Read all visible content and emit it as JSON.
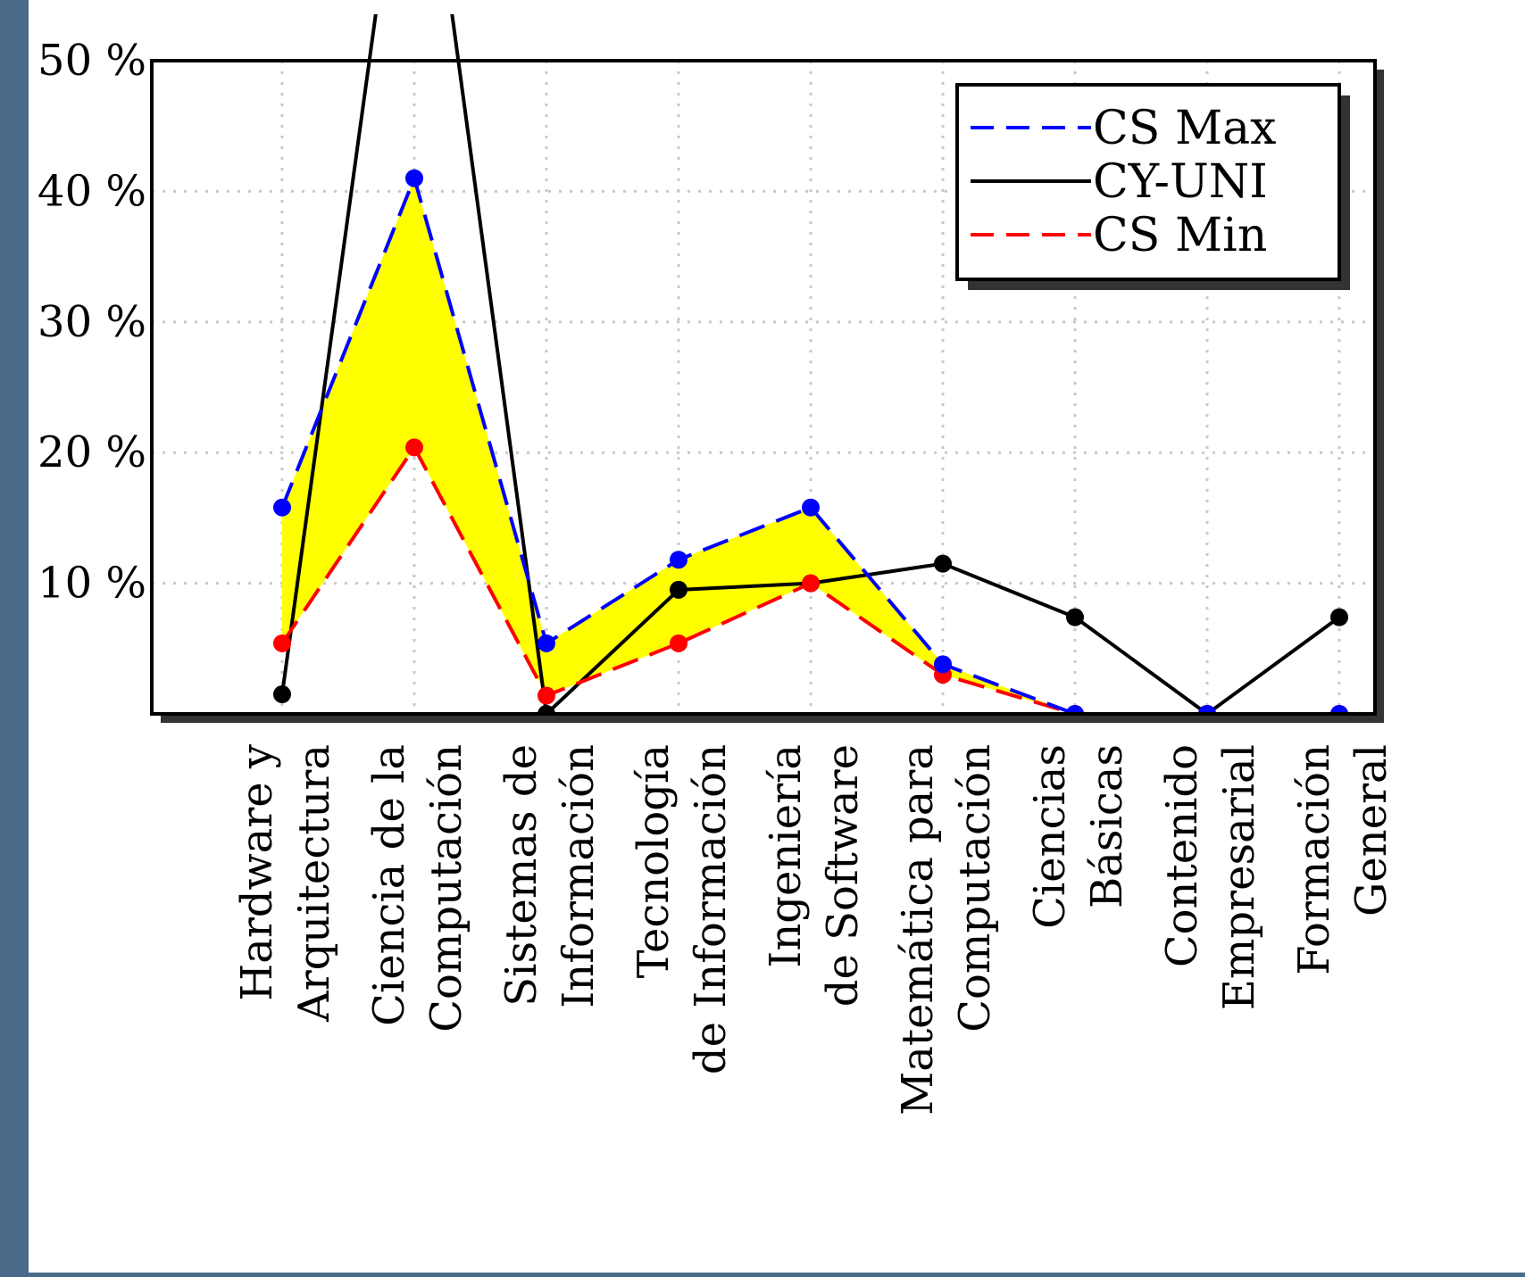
{
  "chart_data": {
    "type": "line",
    "title": "",
    "xlabel": "",
    "ylabel": "",
    "ylim": [
      0,
      50
    ],
    "yticks": [
      10,
      20,
      30,
      40,
      50
    ],
    "ytick_suffix": " %",
    "grid": true,
    "legend_position": "top-right",
    "categories": [
      [
        "Hardware y",
        "Arquitectura"
      ],
      [
        "Ciencia de la",
        "Computación"
      ],
      [
        "Sistemas de",
        "Información"
      ],
      [
        "Tecnología",
        "de Información"
      ],
      [
        "Ingeniería",
        "de Software"
      ],
      [
        "Matemática para",
        "Computación"
      ],
      [
        "Ciencias",
        "Básicas"
      ],
      [
        "Contenido",
        "Empresarial"
      ],
      [
        "Formación",
        "General"
      ]
    ],
    "series": [
      {
        "name": "CS Max",
        "color": "#0000ff",
        "style": "dashed",
        "values": [
          15.8,
          41,
          5.4,
          11.8,
          15.8,
          3.8,
          0,
          0,
          0
        ]
      },
      {
        "name": "CY-UNI",
        "color": "#000000",
        "style": "solid",
        "values": [
          1.5,
          75,
          0,
          9.5,
          10,
          11.5,
          7.4,
          0,
          7.4
        ]
      },
      {
        "name": "CS Min",
        "color": "#ff0000",
        "style": "dashed",
        "values": [
          5.4,
          20.4,
          1.4,
          5.4,
          10,
          3,
          0,
          0,
          0
        ]
      }
    ],
    "fill_between": {
      "upper": "CS Max",
      "lower": "CS Min",
      "color": "#ffff00"
    }
  }
}
